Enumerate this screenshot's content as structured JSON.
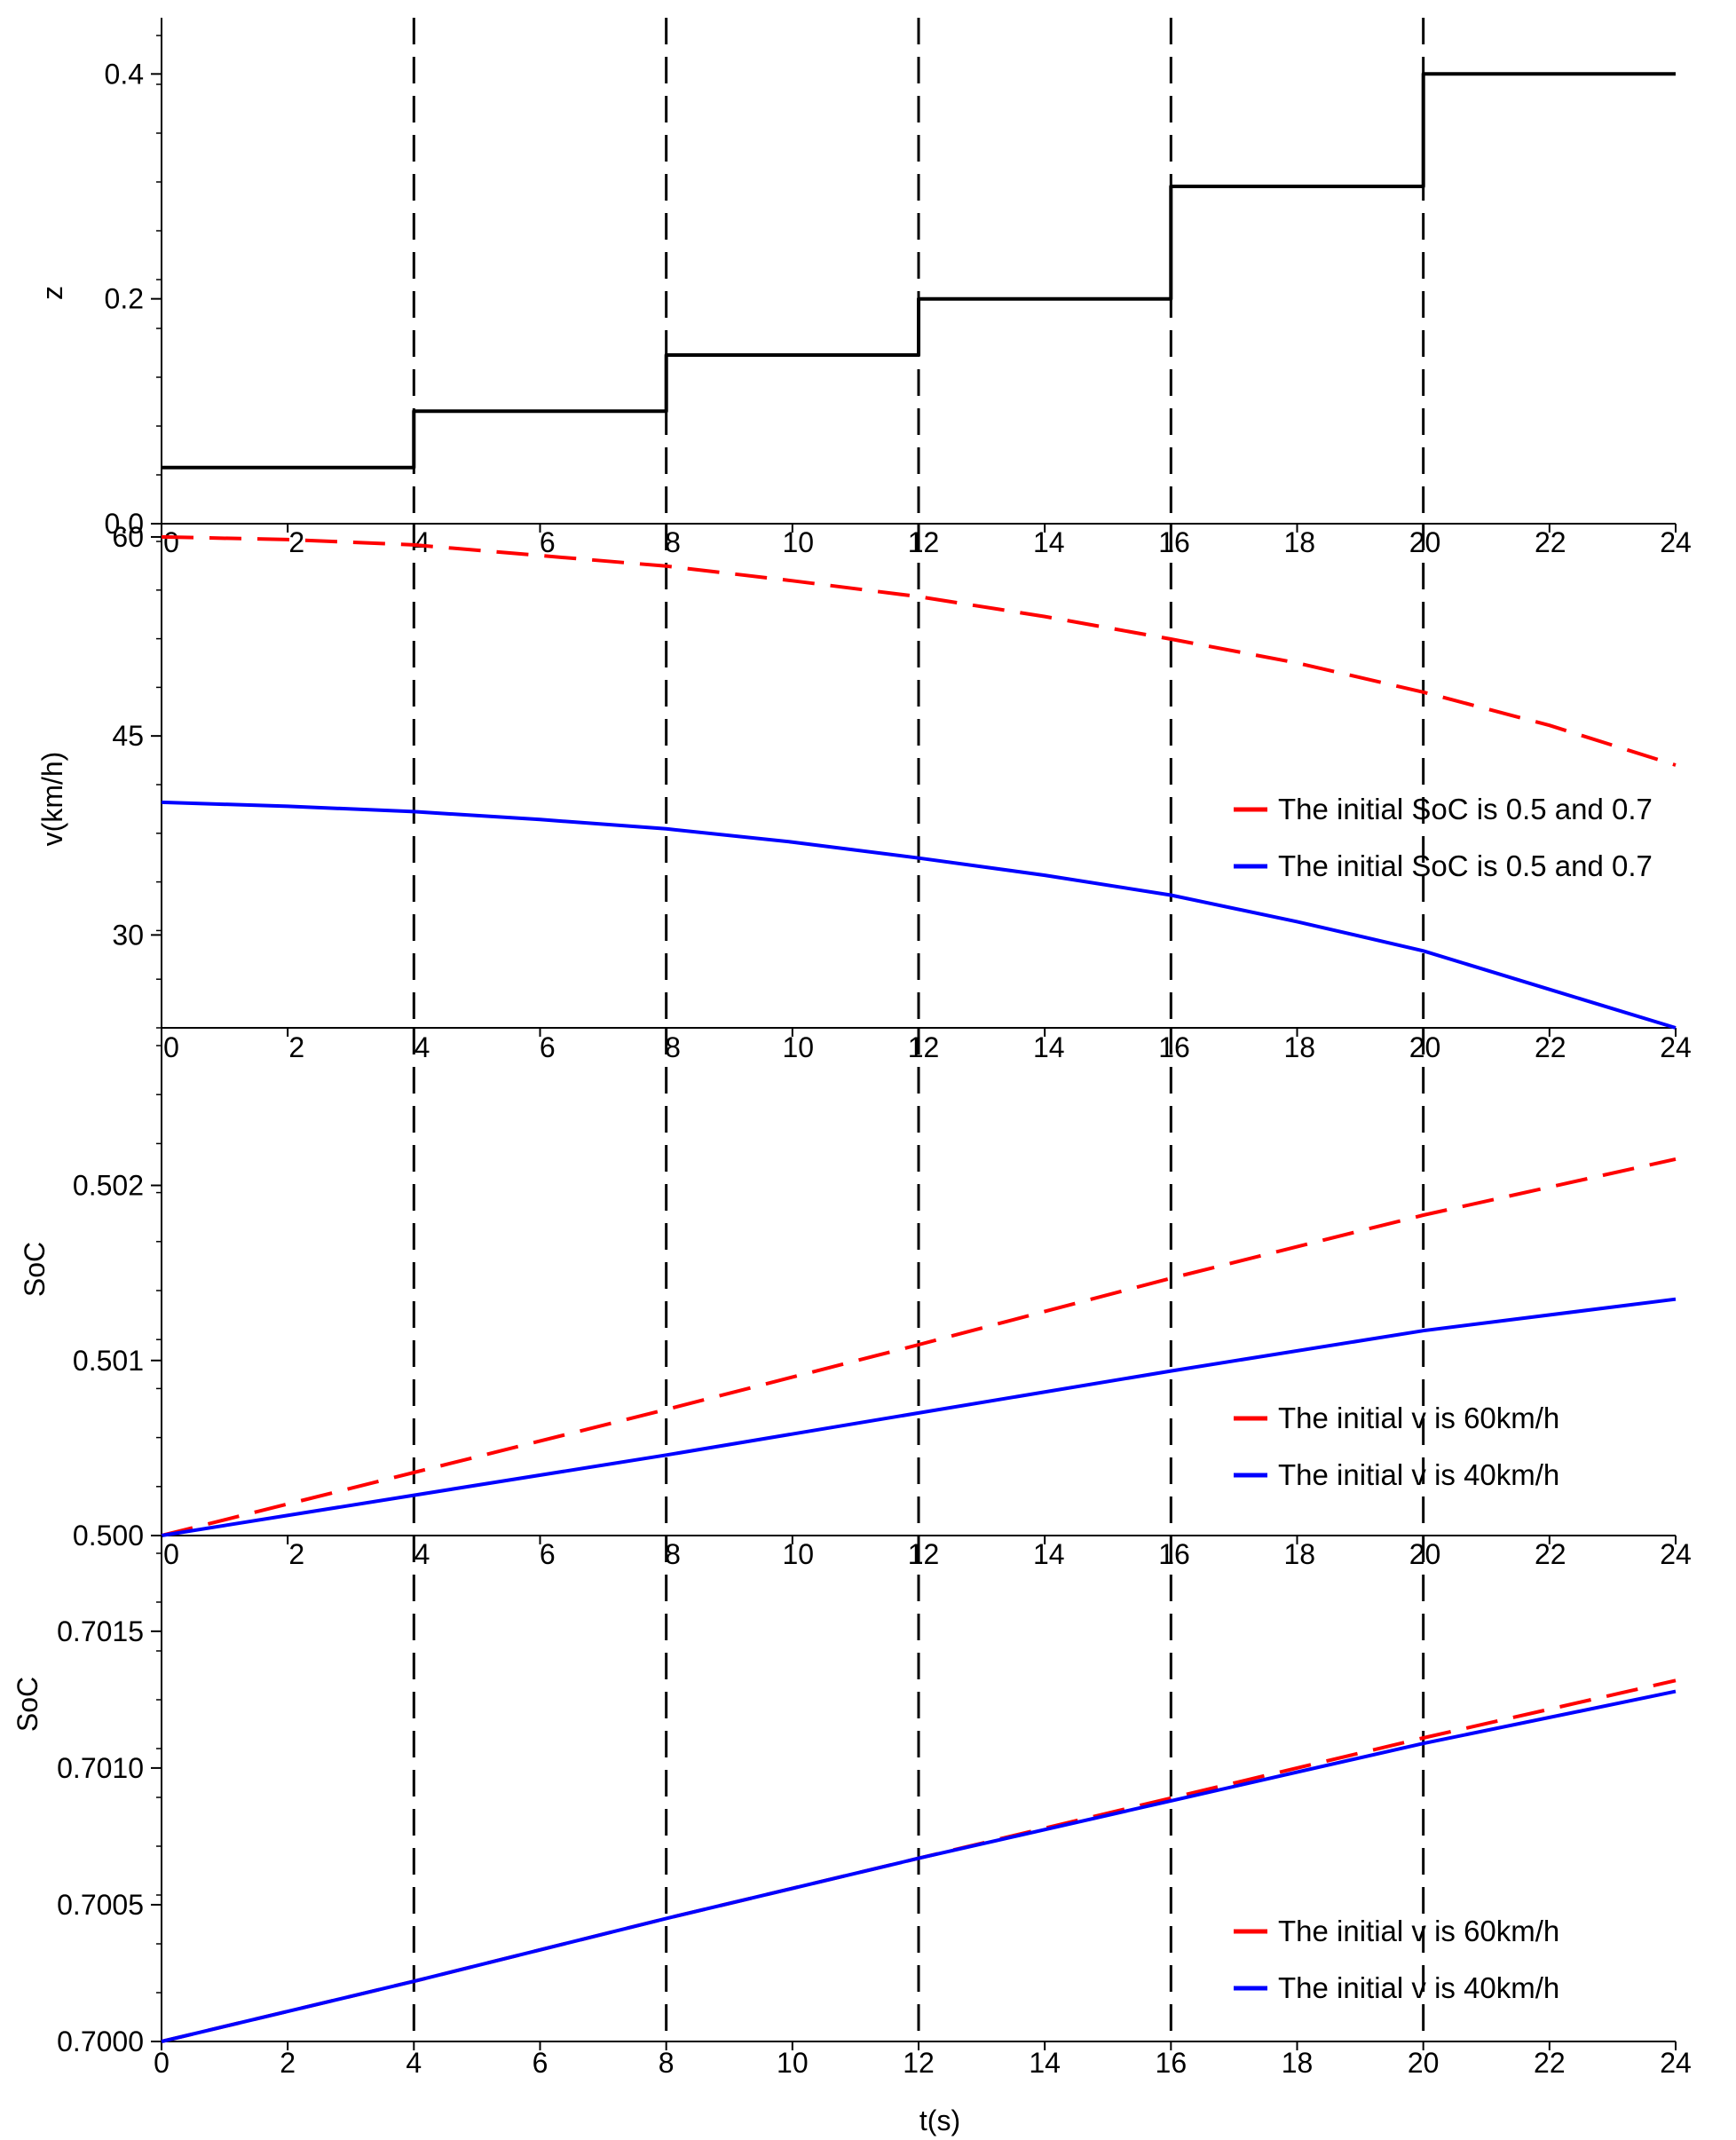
{
  "figure": {
    "xlabel": "t(s)",
    "colors": {
      "red": "#ff0000",
      "blue": "#0000ff",
      "black": "#000000"
    }
  },
  "chart_data": [
    {
      "type": "line",
      "name": "z",
      "ylabel": "z",
      "xlim": [
        0,
        24
      ],
      "ylim": [
        0,
        0.45
      ],
      "x_ticks": [
        0,
        2,
        4,
        6,
        8,
        10,
        12,
        14,
        16,
        18,
        20,
        22,
        24
      ],
      "y_ticks": [
        0.0,
        0.2,
        0.4
      ],
      "y_tick_labels": [
        "0.0",
        "0.2",
        "0.4"
      ],
      "vlines": [
        4,
        8,
        12,
        16,
        20
      ],
      "series": [
        {
          "name": "z",
          "color": "#000000",
          "style": "solid",
          "x": [
            0,
            4,
            4,
            8,
            8,
            12,
            12,
            16,
            16,
            20,
            20,
            24
          ],
          "y": [
            0.05,
            0.05,
            0.1,
            0.1,
            0.15,
            0.15,
            0.2,
            0.2,
            0.3,
            0.3,
            0.4,
            0.4
          ]
        }
      ],
      "legend": []
    },
    {
      "type": "line",
      "name": "velocity",
      "ylabel": "v(km/h)",
      "xlim": [
        0,
        24
      ],
      "ylim": [
        23,
        61
      ],
      "x_ticks": [
        0,
        2,
        4,
        6,
        8,
        10,
        12,
        14,
        16,
        18,
        20,
        22,
        24
      ],
      "y_ticks": [
        30,
        45,
        60
      ],
      "y_tick_labels": [
        "30",
        "45",
        "60"
      ],
      "vlines": [
        4,
        8,
        12,
        16,
        20
      ],
      "series": [
        {
          "name": "The initial SoC is 0.5 and 0.7",
          "color": "#ff0000",
          "style": "dashed",
          "x": [
            0,
            2,
            4,
            6,
            8,
            10,
            12,
            14,
            16,
            18,
            20,
            22,
            24
          ],
          "y": [
            60.0,
            59.8,
            59.4,
            58.6,
            57.8,
            56.7,
            55.5,
            54.0,
            52.3,
            50.5,
            48.3,
            45.8,
            42.8
          ]
        },
        {
          "name": "The initial SoC is 0.5 and 0.7",
          "color": "#0000ff",
          "style": "solid",
          "x": [
            0,
            2,
            4,
            6,
            8,
            10,
            12,
            14,
            16,
            18,
            20,
            22,
            24
          ],
          "y": [
            40.0,
            39.7,
            39.3,
            38.7,
            38.0,
            37.0,
            35.8,
            34.5,
            33.0,
            31.0,
            28.8,
            25.9,
            23.0
          ]
        }
      ],
      "legend": [
        {
          "text": "The initial SoC is 0.5 and 0.7",
          "color": "#ff0000"
        },
        {
          "text": "The initial SoC is 0.5 and 0.7",
          "color": "#0000ff"
        }
      ]
    },
    {
      "type": "line",
      "name": "soc-0.5",
      "ylabel": "SoC",
      "xlim": [
        0,
        24
      ],
      "ylim": [
        0.5,
        0.5029
      ],
      "x_ticks": [
        0,
        2,
        4,
        6,
        8,
        10,
        12,
        14,
        16,
        18,
        20,
        22,
        24
      ],
      "y_ticks": [
        0.5,
        0.501,
        0.502
      ],
      "y_tick_labels": [
        "0.500",
        "0.501",
        "0.502"
      ],
      "vlines": [
        4,
        8,
        12,
        16,
        20
      ],
      "series": [
        {
          "name": "The initial v is 60km/h",
          "color": "#ff0000",
          "style": "dashed",
          "x": [
            0,
            4,
            8,
            12,
            16,
            20,
            24
          ],
          "y": [
            0.5,
            0.50036,
            0.50072,
            0.50109,
            0.50147,
            0.50183,
            0.50215
          ]
        },
        {
          "name": "The initial v is 40km/h",
          "color": "#0000ff",
          "style": "solid",
          "x": [
            0,
            4,
            8,
            12,
            16,
            20,
            24
          ],
          "y": [
            0.5,
            0.50023,
            0.50046,
            0.5007,
            0.50094,
            0.50117,
            0.50135
          ]
        }
      ],
      "legend": [
        {
          "text": "The initial v is 60km/h",
          "color": "#ff0000"
        },
        {
          "text": "The initial v is 40km/h",
          "color": "#0000ff"
        }
      ]
    },
    {
      "type": "line",
      "name": "soc-0.7",
      "ylabel": "SoC",
      "xlim": [
        0,
        24
      ],
      "ylim": [
        0.7,
        0.70185
      ],
      "x_ticks": [
        0,
        2,
        4,
        6,
        8,
        10,
        12,
        14,
        16,
        18,
        20,
        22,
        24
      ],
      "y_ticks": [
        0.7,
        0.7005,
        0.701,
        0.7015
      ],
      "y_tick_labels": [
        "0.7000",
        "0.7005",
        "0.7010",
        "0.7015"
      ],
      "vlines": [
        4,
        8,
        12,
        16,
        20
      ],
      "series": [
        {
          "name": "The initial v is 60km/h",
          "color": "#ff0000",
          "style": "dashed",
          "x": [
            0,
            4,
            8,
            12,
            16,
            20,
            24
          ],
          "y": [
            0.7,
            0.70022,
            0.70045,
            0.70067,
            0.70089,
            0.70111,
            0.70132
          ]
        },
        {
          "name": "The initial v is 40km/h",
          "color": "#0000ff",
          "style": "solid",
          "x": [
            0,
            4,
            8,
            12,
            16,
            20,
            24
          ],
          "y": [
            0.7,
            0.70022,
            0.70045,
            0.70067,
            0.70088,
            0.70109,
            0.70128
          ]
        }
      ],
      "legend": [
        {
          "text": "The initial v is 60km/h",
          "color": "#ff0000"
        },
        {
          "text": "The initial v is 40km/h",
          "color": "#0000ff"
        }
      ]
    }
  ]
}
